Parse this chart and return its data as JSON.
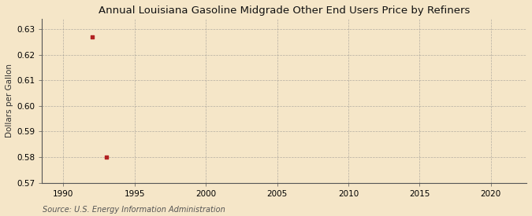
{
  "title": "Annual Louisiana Gasoline Midgrade Other End Users Price by Refiners",
  "ylabel": "Dollars per Gallon",
  "source": "Source: U.S. Energy Information Administration",
  "data_x": [
    1992,
    1993
  ],
  "data_y": [
    0.627,
    0.58
  ],
  "marker_color": "#B22222",
  "marker_size": 3,
  "xlim": [
    1988.5,
    2022.5
  ],
  "ylim": [
    0.57,
    0.634
  ],
  "xticks": [
    1990,
    1995,
    2000,
    2005,
    2010,
    2015,
    2020
  ],
  "yticks": [
    0.57,
    0.58,
    0.59,
    0.6,
    0.61,
    0.62,
    0.63
  ],
  "background_color": "#F5E6C8",
  "plot_bg_color": "#F5E6C8",
  "grid_color": "#888888",
  "title_fontsize": 9.5,
  "label_fontsize": 7.5,
  "tick_fontsize": 7.5,
  "source_fontsize": 7
}
